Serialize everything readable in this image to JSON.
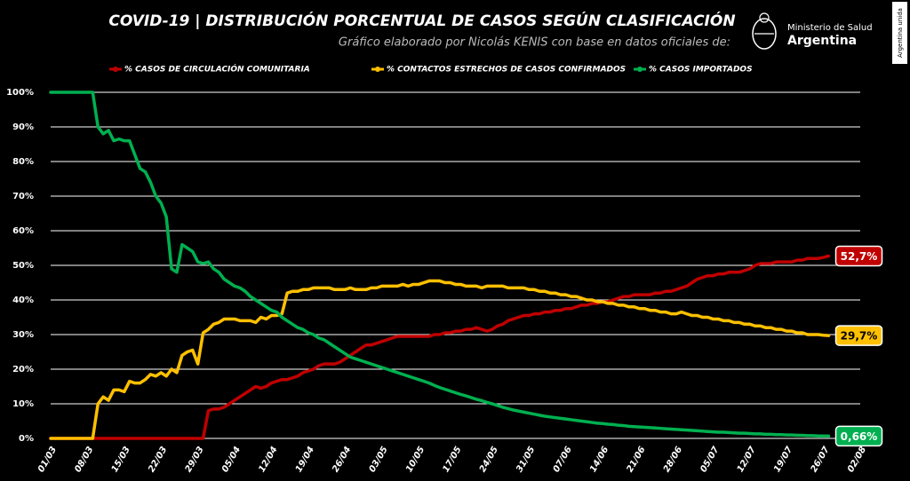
{
  "chart_data": {
    "type": "line",
    "title": "COVID-19  |  DISTRIBUCIÓN PORCENTUAL DE CASOS SEGÚN CLASIFICACIÓN",
    "subtitle": "Gráfico elaborado por Nicolás KENIS con base en datos oficiales de:",
    "logo": {
      "line1": "Ministerio de Salud",
      "line2": "Argentina"
    },
    "side_badge": "Argentina unida",
    "categories": [
      "01/03",
      null,
      null,
      null,
      null,
      null,
      null,
      "08/03",
      null,
      null,
      null,
      null,
      null,
      null,
      "15/03",
      null,
      null,
      null,
      null,
      null,
      null,
      "22/03",
      null,
      null,
      null,
      null,
      null,
      null,
      "29/03",
      null,
      null,
      null,
      null,
      null,
      null,
      "05/04",
      null,
      null,
      null,
      null,
      null,
      null,
      "12/04",
      null,
      null,
      null,
      null,
      null,
      null,
      "19/04",
      null,
      null,
      null,
      null,
      null,
      null,
      "26/04",
      null,
      null,
      null,
      null,
      null,
      null,
      "03/05",
      null,
      null,
      null,
      null,
      null,
      null,
      "10/05",
      null,
      null,
      null,
      null,
      null,
      null,
      "17/05",
      null,
      null,
      null,
      null,
      null,
      null,
      "24/05",
      null,
      null,
      null,
      null,
      null,
      null,
      "31/05",
      null,
      null,
      null,
      null,
      null,
      null,
      "07/06",
      null,
      null,
      null,
      null,
      null,
      null,
      "14/06",
      null,
      null,
      null,
      null,
      null,
      null,
      "21/06",
      null,
      null,
      null,
      null,
      null,
      null,
      "28/06",
      null,
      null,
      null,
      null,
      null,
      null,
      "05/07",
      null,
      null,
      null,
      null,
      null,
      null,
      "12/07",
      null,
      null,
      null,
      null,
      null,
      null,
      "19/07",
      null,
      null,
      null,
      null,
      null,
      null,
      "26/07",
      null,
      null,
      null,
      null,
      null,
      null,
      "02/08"
    ],
    "ylim": [
      0,
      100
    ],
    "yticks": [
      {
        "value": 0,
        "label": "0%"
      },
      {
        "value": 10,
        "label": "10%"
      },
      {
        "value": 20,
        "label": "20%"
      },
      {
        "value": 30,
        "label": "30%"
      },
      {
        "value": 40,
        "label": "40%"
      },
      {
        "value": 50,
        "label": "50%"
      },
      {
        "value": 60,
        "label": "60%"
      },
      {
        "value": 70,
        "label": "70%"
      },
      {
        "value": 80,
        "label": "80%"
      },
      {
        "value": 90,
        "label": "90%"
      },
      {
        "value": 100,
        "label": "100%"
      }
    ],
    "grid": true,
    "series": [
      {
        "name": "% CASOS DE CIRCULACIÓN COMUNITARIA",
        "color": "#c00000",
        "label_text_color": "#ffffff",
        "values": [
          0,
          0,
          0,
          0,
          0,
          0,
          0,
          0,
          0,
          0,
          0,
          0,
          0,
          0,
          0,
          0,
          0,
          0,
          0,
          0,
          0,
          0,
          0,
          0,
          0,
          0,
          0,
          0,
          0,
          0,
          8,
          8.5,
          8.5,
          9,
          10,
          11,
          12,
          13,
          14,
          15,
          14.5,
          15,
          16,
          16.5,
          17,
          17,
          17.5,
          18,
          19,
          19.5,
          20,
          21,
          21.5,
          21.5,
          21.5,
          22,
          23,
          24,
          25,
          26,
          27,
          27,
          27.5,
          28,
          28.5,
          29,
          29.5,
          29.5,
          29.5,
          29.5,
          29.5,
          29.5,
          29.5,
          30,
          30,
          30.5,
          30.5,
          31,
          31,
          31.5,
          31.5,
          32,
          31.5,
          31,
          31.5,
          32.5,
          33,
          34,
          34.5,
          35,
          35.5,
          35.5,
          36,
          36,
          36.5,
          36.5,
          37,
          37,
          37.5,
          37.5,
          38,
          38.5,
          38.5,
          39,
          39,
          39.5,
          39.5,
          40,
          40.5,
          41,
          41,
          41.5,
          41.5,
          41.5,
          41.5,
          42,
          42,
          42.5,
          42.5,
          43,
          43.5,
          44,
          45,
          46,
          46.5,
          47,
          47,
          47.5,
          47.5,
          48,
          48,
          48,
          48.5,
          49,
          50,
          50.5,
          50.5,
          50.5,
          51,
          51,
          51,
          51,
          51.5,
          51.5,
          52,
          52,
          52,
          52.3,
          52.7,
          null,
          null,
          null,
          null,
          null,
          null
        ],
        "value_labels": [
          null,
          null,
          null,
          null,
          null,
          null,
          null,
          null,
          null,
          null,
          null,
          null,
          null,
          null,
          null,
          null,
          null,
          null,
          null,
          null,
          null,
          null,
          null,
          null,
          null,
          null,
          null,
          null,
          null,
          null,
          null,
          null,
          null,
          null,
          null,
          null,
          null,
          null,
          null,
          null,
          null,
          null,
          null,
          null,
          null,
          null,
          null,
          null,
          null,
          null,
          null,
          null,
          null,
          null,
          null,
          null,
          null,
          null,
          null,
          null,
          null,
          null,
          null,
          null,
          null,
          null,
          null,
          null,
          null,
          null,
          null,
          null,
          null,
          null,
          null,
          null,
          null,
          null,
          null,
          null,
          null,
          null,
          null,
          null,
          null,
          null,
          null,
          null,
          null,
          null,
          null,
          null,
          null,
          null,
          null,
          null,
          null,
          null,
          null,
          null,
          null,
          null,
          null,
          null,
          null,
          null,
          null,
          null,
          null,
          null,
          null,
          null,
          null,
          null,
          null,
          null,
          null,
          null,
          null,
          null,
          null,
          null,
          null,
          null,
          null,
          null,
          null,
          null,
          null,
          null,
          null,
          null,
          null,
          null,
          null,
          null,
          null,
          null,
          null,
          null,
          null,
          null,
          null,
          null,
          null,
          null,
          null,
          null,
          "52,7%",
          null,
          null,
          null,
          null,
          null,
          null
        ]
      },
      {
        "name": "% CONTACTOS ESTRECHOS DE CASOS CONFIRMADOS",
        "color": "#ffc000",
        "label_text_color": "#000000",
        "values": [
          0,
          0,
          0,
          0,
          0,
          0,
          0,
          0,
          0,
          10,
          12,
          11,
          14,
          14,
          13.5,
          16.5,
          16,
          16,
          17,
          18.5,
          18,
          19,
          18,
          20,
          19,
          24,
          25,
          25.5,
          21.5,
          30.5,
          31.5,
          33,
          33.5,
          34.5,
          34.5,
          34.5,
          34,
          34,
          34,
          33.5,
          35,
          34.5,
          35.5,
          35.5,
          36,
          42,
          42.5,
          42.5,
          43,
          43,
          43.5,
          43.5,
          43.5,
          43.5,
          43,
          43,
          43,
          43.5,
          43,
          43,
          43,
          43.5,
          43.5,
          44,
          44,
          44,
          44,
          44.5,
          44,
          44.5,
          44.5,
          45,
          45.5,
          45.5,
          45.5,
          45,
          45,
          44.5,
          44.5,
          44,
          44,
          44,
          43.5,
          44,
          44,
          44,
          44,
          43.5,
          43.5,
          43.5,
          43.5,
          43,
          43,
          42.5,
          42.5,
          42,
          42,
          41.5,
          41.5,
          41,
          41,
          40.5,
          40,
          40,
          39.5,
          39.5,
          39,
          39,
          38.5,
          38.5,
          38,
          38,
          37.5,
          37.5,
          37,
          37,
          36.5,
          36.5,
          36,
          36,
          36.5,
          36,
          35.5,
          35.5,
          35,
          35,
          34.5,
          34.5,
          34,
          34,
          33.5,
          33.5,
          33,
          33,
          32.5,
          32.5,
          32,
          32,
          31.5,
          31.5,
          31,
          31,
          30.5,
          30.5,
          30,
          30,
          30,
          29.8,
          29.7,
          null,
          null,
          null,
          null,
          null,
          null
        ],
        "value_labels": [
          null,
          null,
          null,
          null,
          null,
          null,
          null,
          null,
          null,
          null,
          null,
          null,
          null,
          null,
          null,
          null,
          null,
          null,
          null,
          null,
          null,
          null,
          null,
          null,
          null,
          null,
          null,
          null,
          null,
          null,
          null,
          null,
          null,
          null,
          null,
          null,
          null,
          null,
          null,
          null,
          null,
          null,
          null,
          null,
          null,
          null,
          null,
          null,
          null,
          null,
          null,
          null,
          null,
          null,
          null,
          null,
          null,
          null,
          null,
          null,
          null,
          null,
          null,
          null,
          null,
          null,
          null,
          null,
          null,
          null,
          null,
          null,
          null,
          null,
          null,
          null,
          null,
          null,
          null,
          null,
          null,
          null,
          null,
          null,
          null,
          null,
          null,
          null,
          null,
          null,
          null,
          null,
          null,
          null,
          null,
          null,
          null,
          null,
          null,
          null,
          null,
          null,
          null,
          null,
          null,
          null,
          null,
          null,
          null,
          null,
          null,
          null,
          null,
          null,
          null,
          null,
          null,
          null,
          null,
          null,
          null,
          null,
          null,
          null,
          null,
          null,
          null,
          null,
          null,
          null,
          null,
          null,
          null,
          null,
          null,
          null,
          null,
          null,
          null,
          null,
          null,
          null,
          null,
          null,
          null,
          null,
          null,
          null,
          "29,7%",
          null,
          null,
          null,
          null,
          null,
          null
        ]
      },
      {
        "name": "% CASOS IMPORTADOS",
        "color": "#00b050",
        "label_text_color": "#ffffff",
        "values": [
          100,
          100,
          100,
          100,
          100,
          100,
          100,
          100,
          100,
          90,
          88,
          89,
          86,
          86.5,
          86,
          86,
          82,
          78,
          77,
          74,
          70,
          68,
          64,
          49,
          48,
          56,
          55,
          54,
          51,
          50.5,
          51,
          49,
          48,
          46,
          45,
          44,
          43.5,
          42.5,
          41,
          40,
          39,
          38,
          37,
          36.5,
          35,
          34,
          33,
          32,
          31.5,
          30.5,
          30,
          29,
          28.5,
          27.5,
          26.5,
          25.5,
          24.5,
          23.5,
          23,
          22.5,
          22,
          21.5,
          21,
          20.5,
          20,
          19.5,
          19,
          18.5,
          18,
          17.5,
          17,
          16.5,
          16,
          15.3,
          14.7,
          14.2,
          13.7,
          13.2,
          12.7,
          12.3,
          11.8,
          11.3,
          10.9,
          10.4,
          10,
          9.5,
          9,
          8.6,
          8.2,
          7.9,
          7.6,
          7.3,
          7,
          6.7,
          6.4,
          6.2,
          6,
          5.8,
          5.6,
          5.4,
          5.2,
          5,
          4.8,
          4.6,
          4.4,
          4.3,
          4.1,
          4,
          3.8,
          3.7,
          3.5,
          3.4,
          3.3,
          3.2,
          3.1,
          3,
          2.9,
          2.8,
          2.7,
          2.6,
          2.5,
          2.4,
          2.3,
          2.2,
          2.1,
          2,
          1.9,
          1.8,
          1.8,
          1.7,
          1.6,
          1.5,
          1.5,
          1.4,
          1.3,
          1.3,
          1.2,
          1.2,
          1.1,
          1.1,
          1,
          1,
          0.9,
          0.9,
          0.8,
          0.8,
          0.7,
          0.7,
          0.66,
          null,
          null,
          null,
          null,
          null,
          null
        ],
        "value_labels": [
          null,
          null,
          null,
          null,
          null,
          null,
          null,
          null,
          null,
          null,
          null,
          null,
          null,
          null,
          null,
          null,
          null,
          null,
          null,
          null,
          null,
          null,
          null,
          null,
          null,
          null,
          null,
          null,
          null,
          null,
          null,
          null,
          null,
          null,
          null,
          null,
          null,
          null,
          null,
          null,
          null,
          null,
          null,
          null,
          null,
          null,
          null,
          null,
          null,
          null,
          null,
          null,
          null,
          null,
          null,
          null,
          null,
          null,
          null,
          null,
          null,
          null,
          null,
          null,
          null,
          null,
          null,
          null,
          null,
          null,
          null,
          null,
          null,
          null,
          null,
          null,
          null,
          null,
          null,
          null,
          null,
          null,
          null,
          null,
          null,
          null,
          null,
          null,
          null,
          null,
          null,
          null,
          null,
          null,
          null,
          null,
          null,
          null,
          null,
          null,
          null,
          null,
          null,
          null,
          null,
          null,
          null,
          null,
          null,
          null,
          null,
          null,
          null,
          null,
          null,
          null,
          null,
          null,
          null,
          null,
          null,
          null,
          null,
          null,
          null,
          null,
          null,
          null,
          null,
          null,
          null,
          null,
          null,
          null,
          null,
          null,
          null,
          null,
          null,
          null,
          null,
          null,
          null,
          null,
          null,
          null,
          null,
          null,
          "0,66%",
          null,
          null,
          null,
          null,
          null,
          null
        ]
      }
    ]
  }
}
